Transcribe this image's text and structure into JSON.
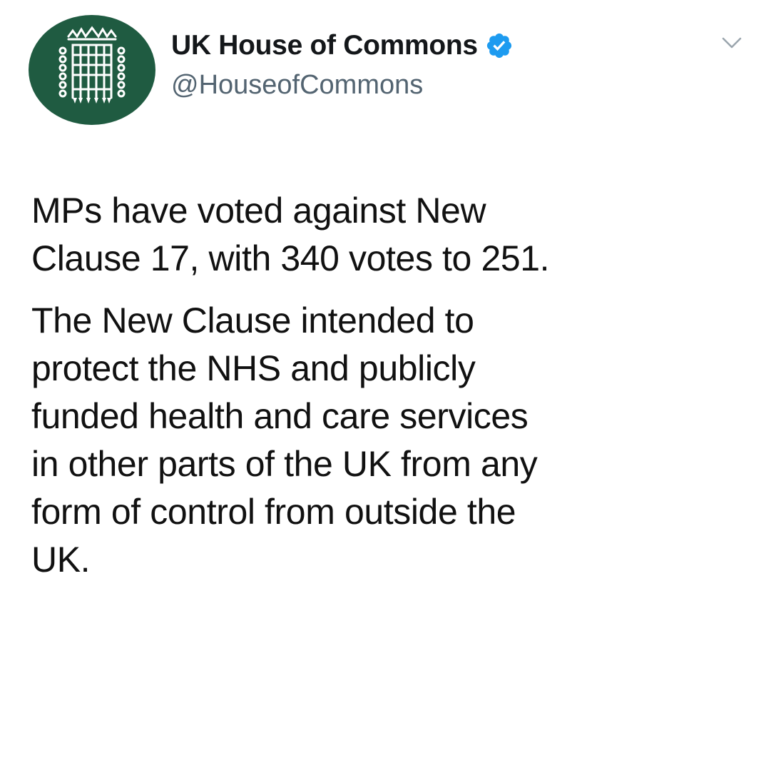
{
  "tweet": {
    "display_name": "UK House of Commons",
    "handle": "@HouseofCommons",
    "verified": true,
    "avatar_icon": "portcullis-icon",
    "avatar_color": "#1f5b41",
    "verified_icon": "verified-badge-icon",
    "verified_color": "#1d9bf0",
    "menu_icon": "chevron-down-icon",
    "paragraphs": [
      "MPs have voted against New\nClause 17, with 340 votes to 251.",
      "The New Clause intended to\nprotect the NHS and publicly\nfunded health and care services\nin other parts of the UK from any\nform of control from outside the\nUK."
    ]
  }
}
